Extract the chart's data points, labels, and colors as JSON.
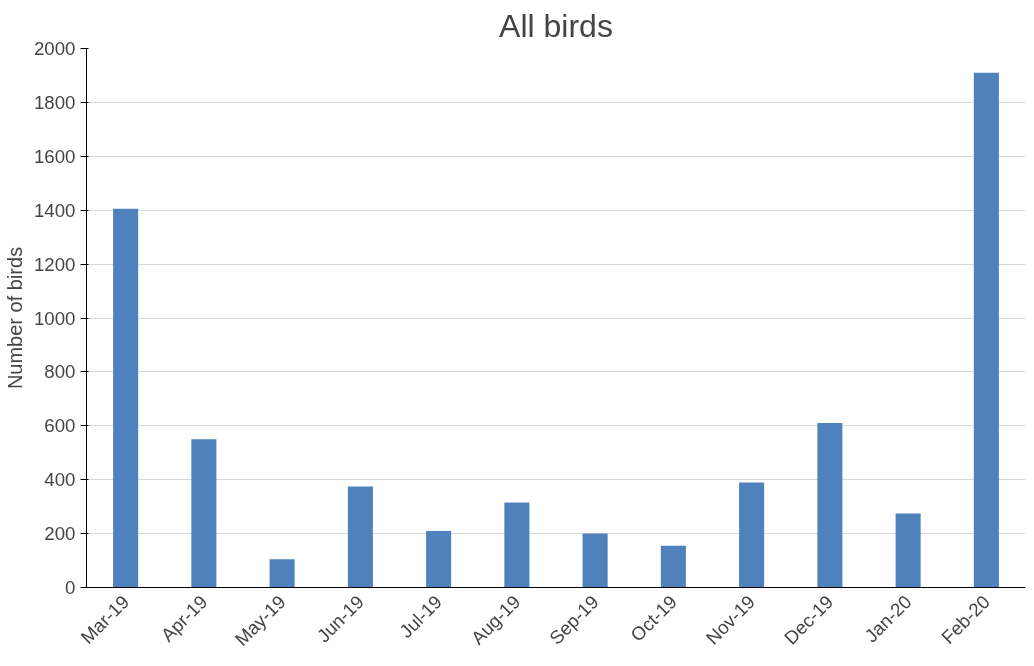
{
  "chart_data": {
    "type": "bar",
    "title": "All birds",
    "ylabel": "Number of birds",
    "categories": [
      "Mar-19",
      "Apr-19",
      "May-19",
      "Jun-19",
      "Jul-19",
      "Aug-19",
      "Sep-19",
      "Oct-19",
      "Nov-19",
      "Dec-19",
      "Jan-20",
      "Feb-20"
    ],
    "values": [
      1405,
      550,
      105,
      375,
      210,
      315,
      200,
      155,
      390,
      610,
      275,
      1910
    ],
    "color": "#4f81bd",
    "ylim": [
      0,
      2000
    ],
    "yticks": [
      0,
      200,
      400,
      600,
      800,
      1000,
      1200,
      1400,
      1600,
      1800,
      2000
    ],
    "grid": "y"
  }
}
